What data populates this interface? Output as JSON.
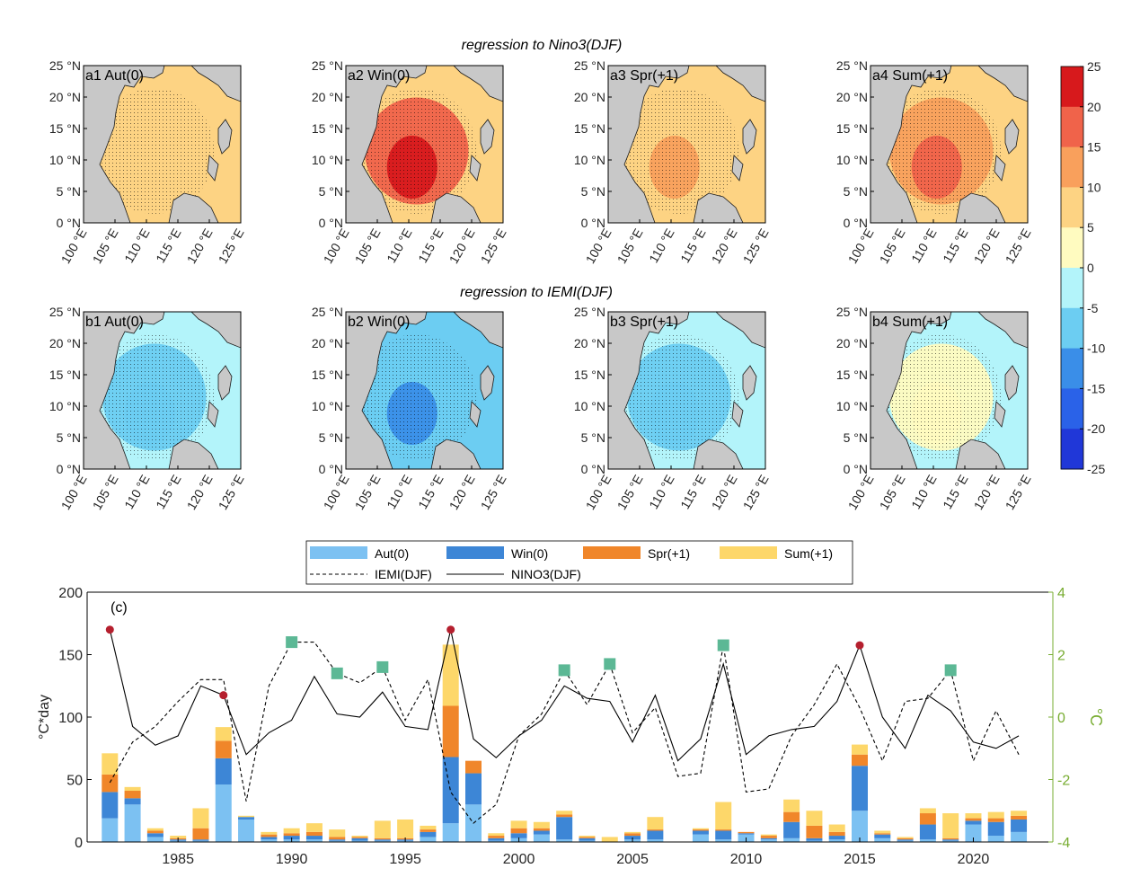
{
  "chart_data": [
    {
      "type": "heatmap",
      "title": "regression to Nino3(DJF)",
      "panels": [
        {
          "label": "a1 Aut(0)",
          "mean_level": 6,
          "max_level": 9
        },
        {
          "label": "a2 Win(0)",
          "mean_level": 10,
          "max_level": 25
        },
        {
          "label": "a3 Spr(+1)",
          "mean_level": 7,
          "max_level": 12
        },
        {
          "label": "a4 Sum(+1)",
          "mean_level": 9,
          "max_level": 16
        }
      ],
      "lat_ticks": [
        "0 °N",
        "5 °N",
        "10 °N",
        "15 °N",
        "20 °N",
        "25 °N"
      ],
      "lon_ticks": [
        "100 °E",
        "105 °E",
        "110 °E",
        "115 °E",
        "120 °E",
        "125 °E"
      ]
    },
    {
      "type": "heatmap",
      "title": "regression to IEMI(DJF)",
      "panels": [
        {
          "label": "b1 Aut(0)",
          "mean_level": -4,
          "max_level": -6
        },
        {
          "label": "b2 Win(0)",
          "mean_level": -6,
          "max_level": -11
        },
        {
          "label": "b3 Spr(+1)",
          "mean_level": -4,
          "max_level": -7
        },
        {
          "label": "b4 Sum(+1)",
          "mean_level": -2,
          "max_level": 3
        }
      ],
      "lat_ticks": [
        "0 °N",
        "5 °N",
        "10 °N",
        "15 °N",
        "20 °N",
        "25 °N"
      ],
      "lon_ticks": [
        "100 °E",
        "105 °E",
        "110 °E",
        "115 °E",
        "120 °E",
        "125 °E"
      ]
    },
    {
      "type": "colorbar",
      "ticks": [
        "25",
        "20",
        "15",
        "10",
        "5",
        "0",
        "-5",
        "-10",
        "-15",
        "-20",
        "-25"
      ],
      "colors": [
        "#d7191c",
        "#f0634a",
        "#f9a05c",
        "#fdd383",
        "#fffbc0",
        "#b3f4fa",
        "#6ccdf2",
        "#3a8ee8",
        "#2a62e8",
        "#2037d8"
      ]
    },
    {
      "type": "bar",
      "label": "(c)",
      "years": [
        1982,
        1983,
        1984,
        1985,
        1986,
        1987,
        1988,
        1989,
        1990,
        1991,
        1992,
        1993,
        1994,
        1995,
        1996,
        1997,
        1998,
        1999,
        2000,
        2001,
        2002,
        2003,
        2004,
        2005,
        2006,
        2007,
        2008,
        2009,
        2010,
        2011,
        2012,
        2013,
        2014,
        2015,
        2016,
        2017,
        2018,
        2019,
        2020,
        2021,
        2022
      ],
      "series": [
        {
          "name": "Aut(0)",
          "color": "#7cc1f2",
          "values": [
            19,
            30,
            4,
            1,
            1,
            46,
            18,
            2,
            2,
            2,
            1,
            1,
            1,
            1,
            4,
            15,
            30,
            1,
            3,
            6,
            2,
            1,
            0,
            2,
            2,
            0,
            6,
            2,
            6,
            2,
            3,
            1,
            2,
            25,
            3,
            1,
            2,
            1,
            14,
            5,
            8
          ]
        },
        {
          "name": "Win(0)",
          "color": "#3d86d6",
          "values": [
            21,
            5,
            3,
            1,
            1,
            21,
            2,
            2,
            3,
            3,
            1,
            2,
            1,
            1,
            4,
            53,
            25,
            2,
            4,
            3,
            18,
            2,
            0,
            3,
            7,
            0,
            3,
            7,
            1,
            1,
            13,
            2,
            3,
            36,
            3,
            1,
            12,
            1,
            3,
            11,
            10
          ]
        },
        {
          "name": "Spr(+1)",
          "color": "#f0862a",
          "values": [
            14,
            6,
            2,
            1,
            9,
            14,
            0,
            2,
            2,
            3,
            2,
            1,
            1,
            1,
            2,
            41,
            10,
            2,
            4,
            2,
            2,
            1,
            0,
            2,
            1,
            0,
            1,
            1,
            1,
            2,
            8,
            10,
            3,
            9,
            1,
            1,
            9,
            1,
            2,
            3,
            3
          ]
        },
        {
          "name": "Sum(+1)",
          "color": "#fdd76a",
          "values": [
            17,
            3,
            2,
            2,
            16,
            11,
            1,
            2,
            4,
            7,
            6,
            1,
            14,
            15,
            3,
            49,
            0,
            2,
            6,
            5,
            3,
            1,
            4,
            1,
            10,
            0,
            1,
            22,
            0,
            1,
            10,
            12,
            6,
            8,
            2,
            1,
            4,
            20,
            4,
            5,
            4
          ]
        }
      ],
      "lines": [
        {
          "name": "IEMI(DJF)",
          "style": "dashed",
          "values": [
            -2.1,
            -0.8,
            -0.3,
            0.5,
            1.2,
            1.2,
            -2.7,
            1.0,
            2.4,
            2.4,
            1.4,
            1.1,
            1.6,
            -0.1,
            1.2,
            -2.4,
            -3.4,
            -2.8,
            -0.6,
            0.1,
            1.5,
            0.4,
            1.7,
            -0.5,
            0.3,
            -1.9,
            -1.8,
            2.3,
            -2.4,
            -2.3,
            -0.6,
            0.4,
            1.7,
            0.3,
            -1.4,
            0.5,
            0.6,
            1.5,
            -1.4,
            0.2,
            -1.2
          ]
        },
        {
          "name": "NINO3(DJF)",
          "style": "solid",
          "values": [
            2.8,
            -0.3,
            -0.9,
            -0.6,
            1.0,
            0.7,
            -1.2,
            -0.5,
            -0.1,
            1.3,
            0.1,
            0.0,
            0.8,
            -0.3,
            -0.4,
            2.8,
            -0.7,
            -1.3,
            -0.6,
            -0.1,
            1.0,
            0.6,
            0.5,
            -0.8,
            0.7,
            -1.4,
            -0.7,
            1.7,
            -1.2,
            -0.6,
            -0.4,
            -0.3,
            0.5,
            2.3,
            0.0,
            -1.0,
            0.7,
            0.2,
            -0.8,
            -1.0,
            -0.6
          ]
        }
      ],
      "red_markers_years": [
        1982,
        1987,
        1997,
        2015
      ],
      "red_marker_color": "#b51f2e",
      "green_markers_years": [
        1990,
        1992,
        1994,
        2002,
        2004,
        2009,
        2019
      ],
      "green_marker_color": "#5cb895",
      "ylabel_left": "°C*day",
      "ylabel_right": "°C",
      "right_axis_color": "#77ac30",
      "ylim_left": [
        0,
        200
      ],
      "ylim_right": [
        -4,
        4
      ],
      "yticks_left": [
        "0",
        "50",
        "100",
        "150",
        "200"
      ],
      "yticks_right": [
        "-4",
        "-2",
        "0",
        "2",
        "4"
      ],
      "xticks": [
        "1985",
        "1990",
        "1995",
        "2000",
        "2005",
        "2010",
        "2015",
        "2020"
      ],
      "legend": [
        "Aut(0)",
        "Win(0)",
        "Spr(+1)",
        "Sum(+1)",
        "IEMI(DJF)",
        "NINO3(DJF)"
      ],
      "legend_position": "top"
    }
  ]
}
